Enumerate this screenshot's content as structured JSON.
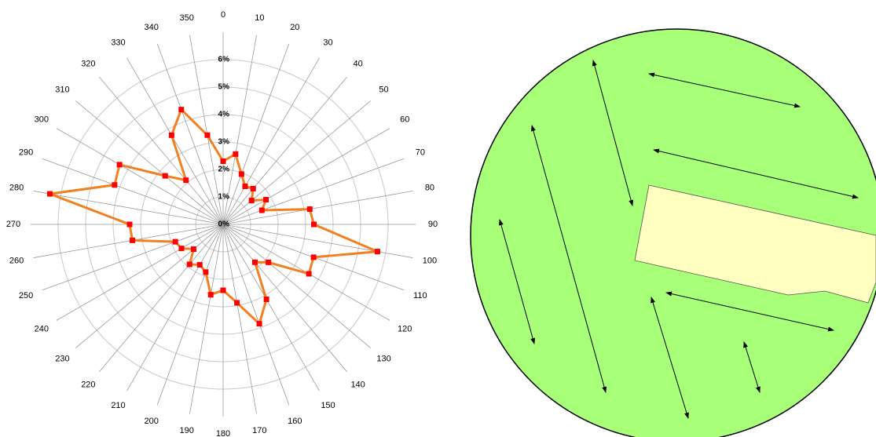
{
  "chart_data": {
    "type": "radar",
    "categories": [
      "0",
      "10",
      "20",
      "30",
      "40",
      "50",
      "60",
      "70",
      "80",
      "90",
      "100",
      "110",
      "120",
      "130",
      "140",
      "150",
      "160",
      "170",
      "180",
      "190",
      "200",
      "210",
      "220",
      "230",
      "240",
      "250",
      "260",
      "270",
      "280",
      "290",
      "300",
      "310",
      "320",
      "330",
      "340",
      "350"
    ],
    "values": [
      2.3,
      2.6,
      1.95,
      1.6,
      1.7,
      1.35,
      1.8,
      1.5,
      3.2,
      3.3,
      5.7,
      3.5,
      3.6,
      2.15,
      1.8,
      3.15,
      3.85,
      2.9,
      2.4,
      2.6,
      1.85,
      1.7,
      1.9,
      1.4,
      1.75,
      1.85,
      3.35,
      3.4,
      6.4,
      4.2,
      4.35,
      2.75,
      2.1,
      3.75,
      4.45,
      3.3
    ],
    "color": "#f08020",
    "marker_color": "#ff0000",
    "ylim": [
      0,
      7
    ],
    "yticks": [
      {
        "value": 0,
        "label": "0%"
      },
      {
        "value": 1,
        "label": "1%"
      },
      {
        "value": 2,
        "label": "2%"
      },
      {
        "value": 3,
        "label": "3%"
      },
      {
        "value": 4,
        "label": "4%"
      },
      {
        "value": 5,
        "label": "5%"
      },
      {
        "value": 6,
        "label": "6%"
      }
    ],
    "grid": true
  }
}
